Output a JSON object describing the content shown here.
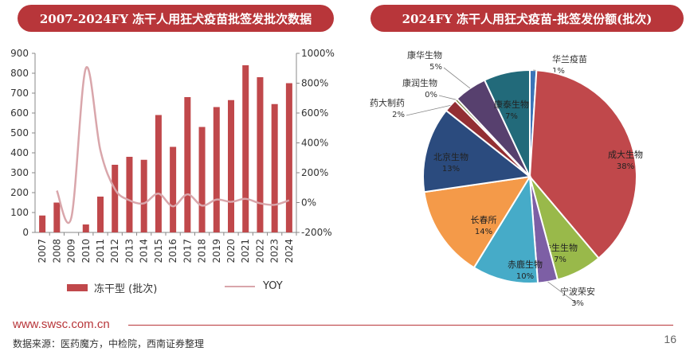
{
  "left_title": "2007-2024FY 冻干人用狂犬疫苗批签发批次数据",
  "right_title": "2024FY 冻干人用狂犬疫苗-批签发份额(批次)",
  "legend": {
    "bar_label": "冻干型 (批次)",
    "line_label": "YOY"
  },
  "footer": {
    "site": "www.swsc.com.cn",
    "source": "数据来源：医药魔方，中检院，西南证券整理",
    "page": "16"
  },
  "colors": {
    "bar": "#c0484b",
    "line": "#d9a6ab",
    "title_bg": "#b8363a"
  },
  "chart_data": [
    {
      "type": "bar",
      "categories": [
        "2007",
        "2008",
        "2009",
        "2010",
        "2011",
        "2012",
        "2013",
        "2014",
        "2015",
        "2016",
        "2017",
        "2018",
        "2019",
        "2020",
        "2021",
        "2022",
        "2023",
        "2024"
      ],
      "series": [
        {
          "name": "冻干型 (批次)",
          "values": [
            85,
            150,
            0,
            40,
            180,
            340,
            380,
            365,
            590,
            430,
            680,
            530,
            630,
            665,
            840,
            780,
            645,
            750
          ]
        },
        {
          "name": "YOY",
          "type": "line",
          "axis": "right",
          "values": [
            null,
            80,
            -100,
            900,
            350,
            90,
            15,
            -5,
            60,
            -25,
            55,
            -20,
            20,
            5,
            25,
            -5,
            -15,
            15
          ]
        }
      ],
      "ylim": [
        0,
        900
      ],
      "yticks": [
        "0",
        "100",
        "200",
        "300",
        "400",
        "500",
        "600",
        "700",
        "800",
        "900"
      ],
      "y2lim": [
        -200,
        1000
      ],
      "y2ticks": [
        "-200%",
        "0%",
        "200%",
        "400%",
        "600%",
        "800%",
        "1000%"
      ]
    },
    {
      "type": "pie",
      "slices": [
        {
          "label": "华兰疫苗",
          "pct": "1%",
          "value": 1,
          "color": "#3b74b8"
        },
        {
          "label": "成大生物",
          "pct": "38%",
          "value": 38,
          "color": "#c0484b"
        },
        {
          "label": "依生生物",
          "pct": "7%",
          "value": 7,
          "color": "#99b94a"
        },
        {
          "label": "宁波荣安",
          "pct": "3%",
          "value": 3,
          "color": "#7d5fa5"
        },
        {
          "label": "赤鹿生物",
          "pct": "10%",
          "value": 10,
          "color": "#46abc8"
        },
        {
          "label": "长春所",
          "pct": "14%",
          "value": 14,
          "color": "#f49a49"
        },
        {
          "label": "北京生物",
          "pct": "13%",
          "value": 13,
          "color": "#2b4b7e"
        },
        {
          "label": "药大制药",
          "pct": "2%",
          "value": 2,
          "color": "#932f33"
        },
        {
          "label": "康润生物",
          "pct": "0%",
          "value": 0.4,
          "color": "#6e7a30"
        },
        {
          "label": "康华生物",
          "pct": "5%",
          "value": 5,
          "color": "#57406e"
        },
        {
          "label": "康泰生物",
          "pct": "7%",
          "value": 7,
          "color": "#226a7a"
        }
      ]
    }
  ]
}
